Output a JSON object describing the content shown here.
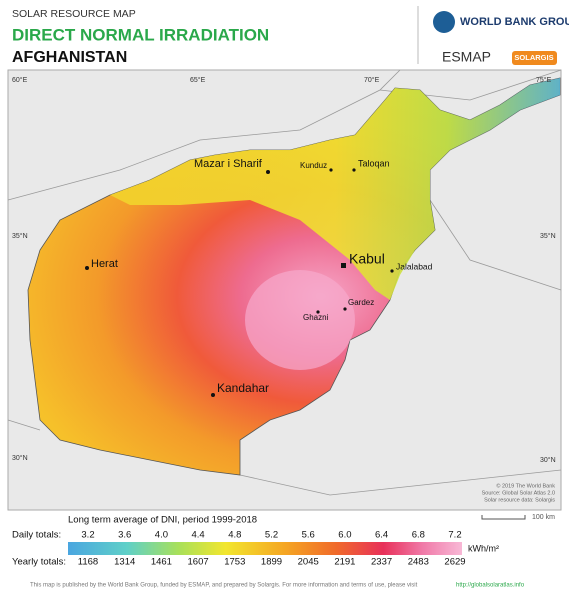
{
  "header": {
    "subtitle": "SOLAR RESOURCE MAP",
    "title": "DIRECT NORMAL IRRADIATION",
    "country": "AFGHANISTAN"
  },
  "logos": {
    "world_bank": "WORLD BANK GROUP",
    "esmap": "ESMAP",
    "solargis": "SOLARGIS"
  },
  "map": {
    "graticule": {
      "lon": [
        "60°E",
        "65°E",
        "70°E",
        "75°E"
      ],
      "lat": [
        "35°N",
        "30°N"
      ]
    },
    "cities": [
      "Mazar i Sharif",
      "Kunduz",
      "Taloqan",
      "Herat",
      "Kabul",
      "Jalalabad",
      "Gardez",
      "Ghazni",
      "Kandahar"
    ],
    "credits": [
      "© 2019 The World Bank",
      "Source: Global Solar Atlas 2.0",
      "Solar resource data: Solargis"
    ],
    "scale": "100 km"
  },
  "legend": {
    "title": "Long term average of DNI, period 1999-2018",
    "daily_label": "Daily totals:",
    "daily": [
      "3.2",
      "3.6",
      "4.0",
      "4.4",
      "4.8",
      "5.2",
      "5.6",
      "6.0",
      "6.4",
      "6.8",
      "7.2"
    ],
    "yearly_label": "Yearly totals:",
    "yearly": [
      1168,
      1314,
      1461,
      1607,
      1753,
      1899,
      2045,
      2191,
      2337,
      2483,
      2629
    ],
    "unit": "kWh/m²"
  },
  "footer": {
    "text": "This map is published by the World Bank Group, funded by ESMAP, and prepared by Solargis. For more information and terms of use, please visit",
    "link": "http://globalsolaratlas.info"
  }
}
